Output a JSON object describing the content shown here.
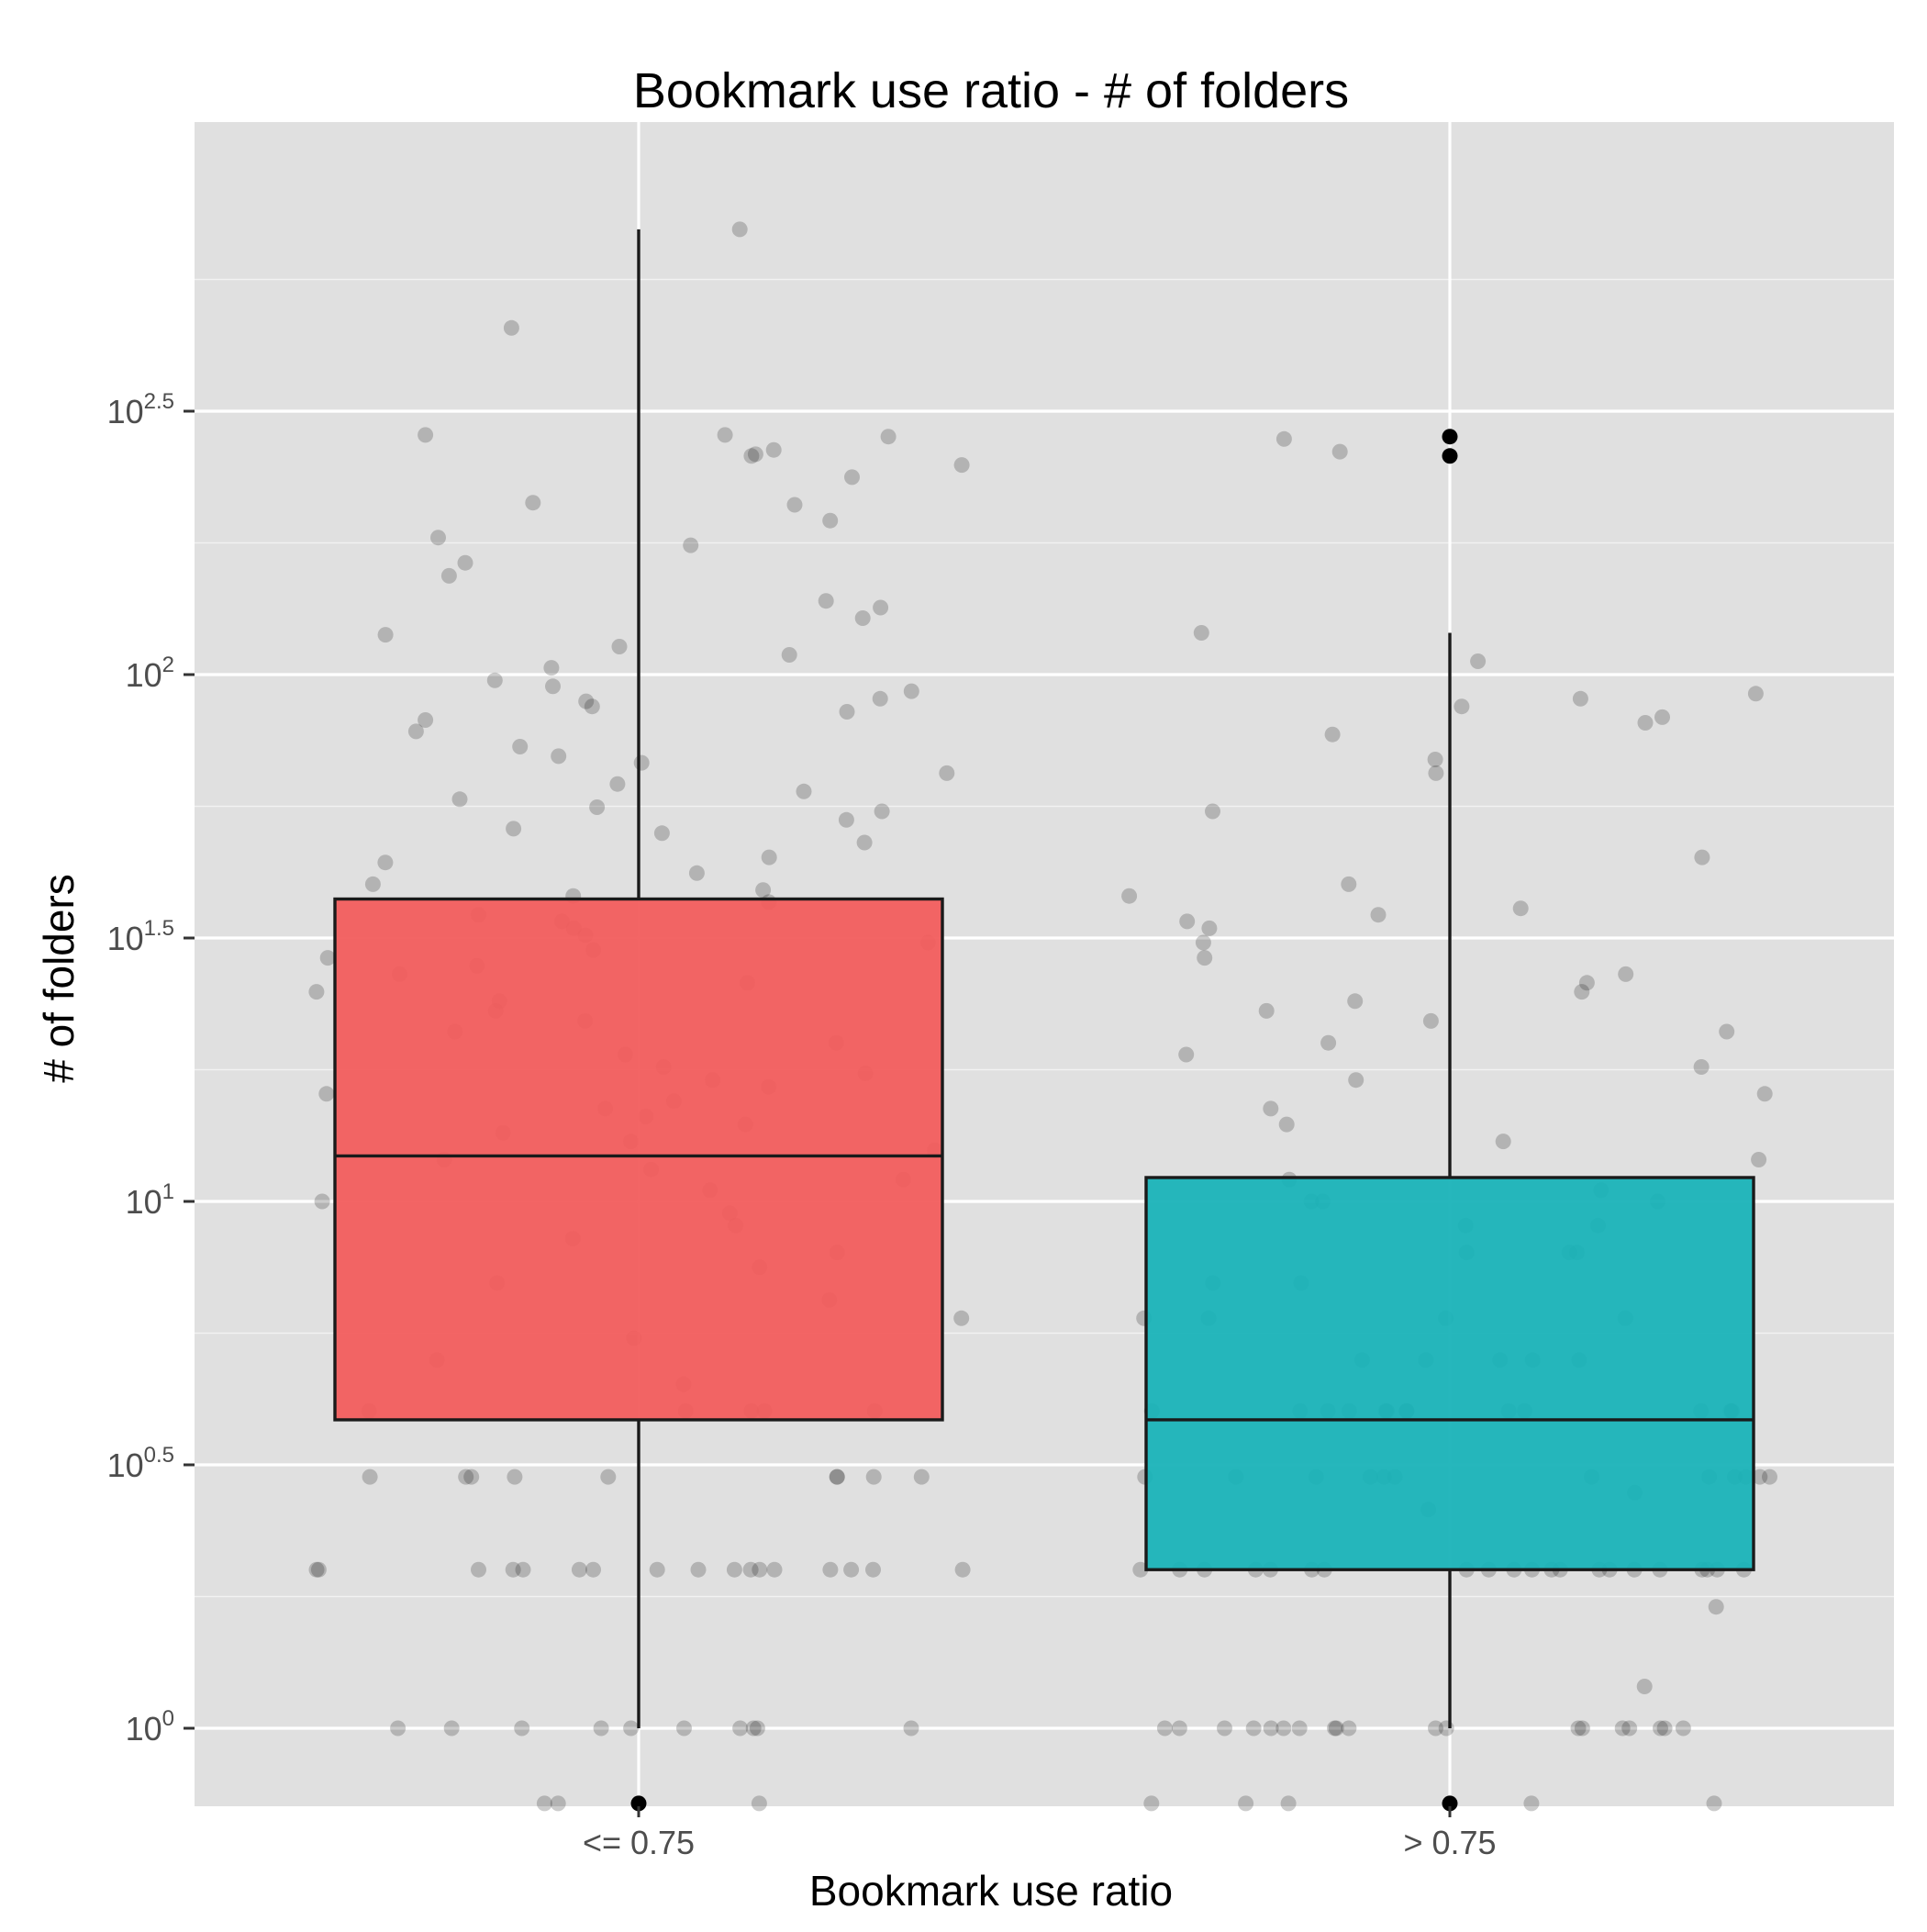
{
  "chart_data": {
    "type": "box",
    "title": "Bookmark use ratio - # of folders",
    "xlabel": "Bookmark use ratio",
    "ylabel": "# of folders",
    "y_scale": "log10",
    "ylim_log10": [
      -0.14,
      3.06
    ],
    "y_ticks": [
      {
        "base": "10",
        "exp": "0",
        "log10": 0
      },
      {
        "base": "10",
        "exp": "0.5",
        "log10": 0.5
      },
      {
        "base": "10",
        "exp": "1",
        "log10": 1
      },
      {
        "base": "10",
        "exp": "1.5",
        "log10": 1.5
      },
      {
        "base": "10",
        "exp": "2",
        "log10": 2
      },
      {
        "base": "10",
        "exp": "2.5",
        "log10": 2.5
      }
    ],
    "categories": [
      "<= 0.75",
      "> 0.75"
    ],
    "grid": true,
    "colors": {
      "panel_background": "#e0e0e0",
      "<= 0.75": "#f25d5d",
      "> 0.75": "#1ab3b8"
    },
    "boxes": [
      {
        "category": "<= 0.75",
        "min": 1,
        "q1": 3.85,
        "median": 12.2,
        "q3": 37.5,
        "max": 700,
        "outliers": [
          0.72
        ]
      },
      {
        "category": "> 0.75",
        "min": 1,
        "q1": 2,
        "median": 3.85,
        "q3": 11.1,
        "max": 120,
        "outliers": [
          0.72,
          260,
          283
        ]
      }
    ],
    "jitter_points": [
      {
        "category": "<= 0.75",
        "values": [
          700,
          455,
          285,
          250,
          262,
          260,
          285,
          283,
          267,
          237,
          210,
          212,
          196,
          182,
          176,
          163,
          154,
          138,
          134,
          128,
          119,
          113,
          109,
          103,
          97.5,
          95,
          93,
          90,
          89,
          87,
          85,
          82,
          78,
          73,
          70,
          68,
          65,
          62,
          60,
          58,
          56,
          55,
          53,
          51,
          50,
          48,
          45,
          44,
          42,
          40,
          39,
          38,
          37,
          35,
          34,
          33,
          32,
          31,
          30,
          29,
          28,
          27,
          26,
          25,
          24,
          23,
          22,
          21,
          20,
          19,
          18,
          17.5,
          17,
          16.5,
          16,
          15.5,
          15,
          14.5,
          14,
          13.5,
          13,
          12.5,
          12,
          11.5,
          11,
          10.5,
          10,
          9.5,
          9,
          8.5,
          8,
          7.5,
          7,
          6.5,
          6,
          5.5,
          5,
          4.5,
          4,
          4,
          4,
          4,
          4,
          3,
          3,
          3,
          3,
          3,
          3,
          3,
          3,
          3,
          2,
          2,
          2,
          2,
          2,
          2,
          2,
          2,
          2,
          2,
          2,
          2,
          2,
          2,
          2,
          2,
          2,
          1,
          1,
          1,
          1,
          1,
          1,
          1,
          1,
          1,
          1,
          0.72,
          0.72,
          0.72
        ]
      },
      {
        "category": "> 0.75",
        "values": [
          280,
          265,
          120,
          106,
          92,
          90,
          87,
          83,
          81,
          77,
          69,
          65,
          55,
          45,
          40,
          38,
          36,
          35,
          34,
          33,
          31,
          29,
          27,
          26,
          25,
          24,
          23,
          22,
          21,
          20,
          19,
          18,
          17,
          16,
          15,
          14,
          13,
          12,
          11,
          10.5,
          10,
          10,
          10,
          9,
          9,
          8,
          8,
          8,
          7,
          7,
          6,
          6,
          6,
          6,
          5,
          5,
          5,
          5,
          5,
          4,
          4,
          4,
          4,
          4,
          4,
          4,
          4,
          4,
          4,
          4,
          4,
          4,
          3,
          3,
          3,
          3,
          3,
          3,
          3,
          3,
          3,
          3,
          3,
          3,
          2.8,
          2.6,
          2,
          2,
          2,
          2,
          2,
          2,
          2,
          2,
          2,
          2,
          2,
          2,
          2,
          2,
          2,
          2,
          2,
          2,
          2,
          2,
          2,
          1.7,
          1.2,
          1,
          1,
          1,
          1,
          1,
          1,
          1,
          1,
          1,
          1,
          1,
          1,
          1,
          1,
          1,
          1,
          1,
          1,
          1,
          0.72,
          0.72,
          0.72,
          0.72,
          0.72
        ]
      }
    ]
  }
}
